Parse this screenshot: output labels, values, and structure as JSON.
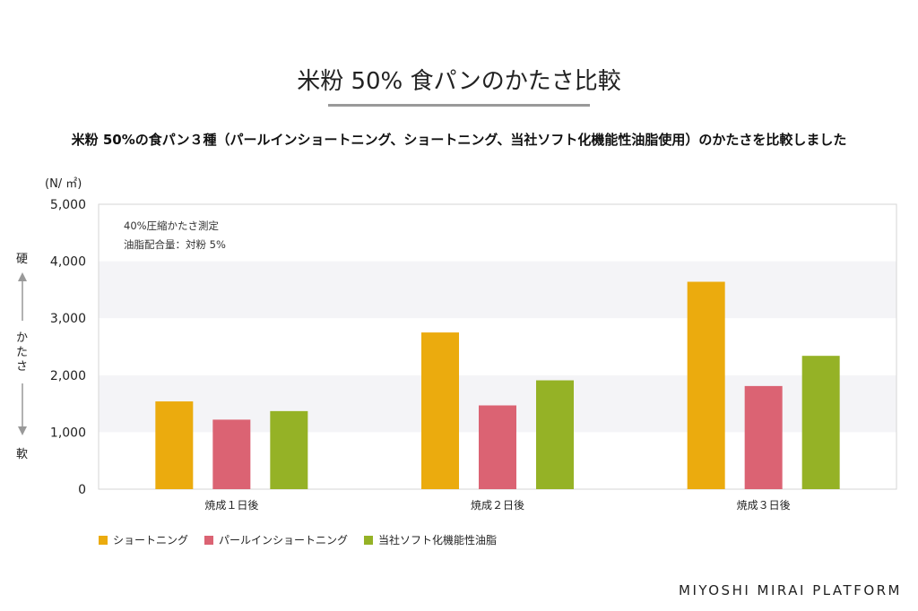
{
  "title": "米粉 50% 食パンのかたさ比較",
  "subtitle": "米粉 50%の食パン３種（パールインショートニング、ショートニング、当社ソフト化機能性油脂使用）のかたさを比較しました",
  "brand": "MIYOSHI MIRAI PLATFORM",
  "chart_data": {
    "type": "bar",
    "ylabel": "(N/ ㎡)",
    "ylim": [
      0,
      5000
    ],
    "yticks": [
      0,
      1000,
      2000,
      3000,
      4000,
      5000
    ],
    "ytick_labels": [
      "0",
      "1,000",
      "2,000",
      "3,000",
      "4,000",
      "5,000"
    ],
    "categories": [
      "焼成１日後",
      "焼成２日後",
      "焼成３日後"
    ],
    "series": [
      {
        "name": "ショートニング",
        "color": "#EBAB0E",
        "values": [
          1540,
          2750,
          3640
        ]
      },
      {
        "name": "パールインショートニング",
        "color": "#DB6373",
        "values": [
          1220,
          1470,
          1810
        ]
      },
      {
        "name": "当社ソフト化機能性油脂",
        "color": "#95B226",
        "values": [
          1370,
          1910,
          2340
        ]
      }
    ],
    "annotations": [
      "40%圧縮かたさ測定",
      "油脂配合量：対粉 5%"
    ],
    "side_axis": {
      "top": "硬",
      "middle": "かたさ",
      "bottom": "軟"
    },
    "grid": true,
    "legend": "bottom-left"
  }
}
